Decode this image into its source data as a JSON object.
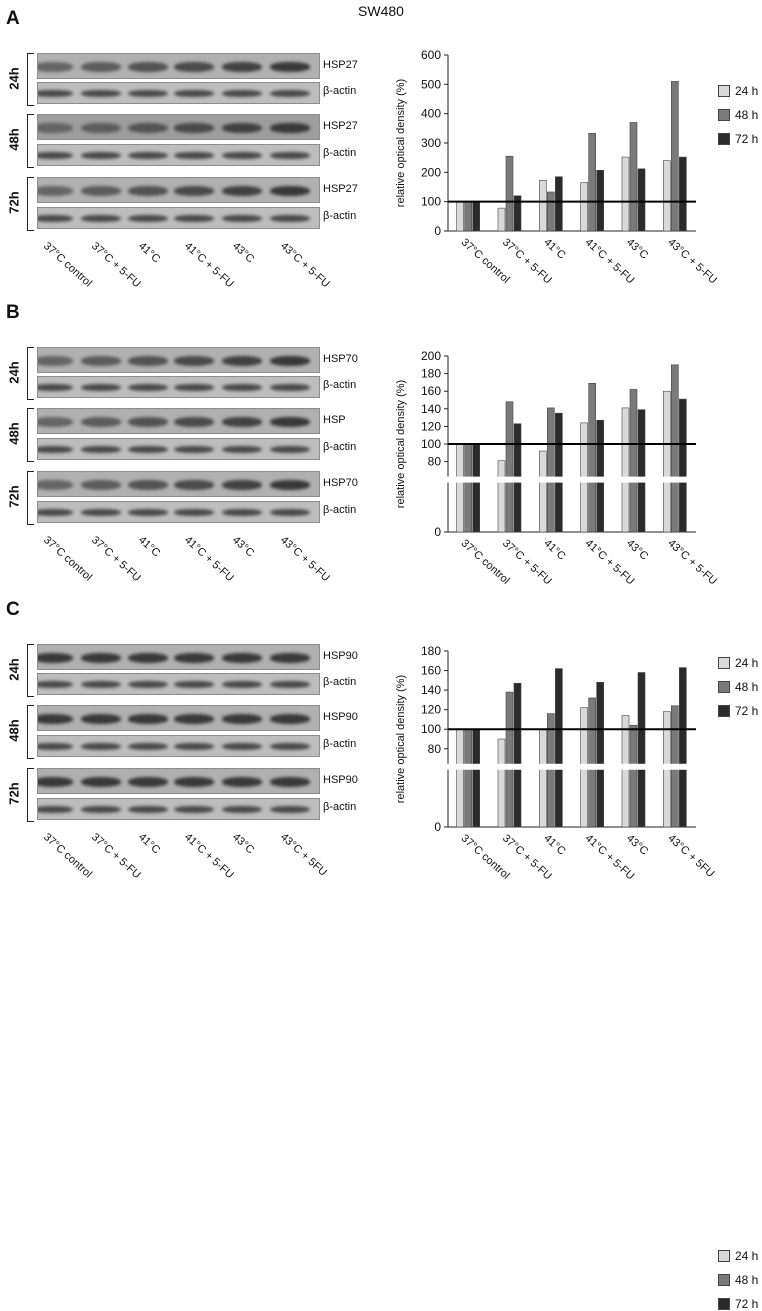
{
  "figure_title": "SW480",
  "conditions": [
    "37°C control",
    "37°C + 5-FU",
    "41°C",
    "41°C + 5-FU",
    "43°C",
    "43°C + 5-FU"
  ],
  "time_labels": [
    "24h",
    "48h",
    "72h"
  ],
  "panels": [
    {
      "label": "A",
      "blot_labels": [
        "HSP27",
        "β-actin",
        "HSP27",
        "β-actin",
        "HSP27",
        "β-actin"
      ],
      "lane_labels": [
        "37°C control",
        "37°C + 5-FU",
        "41°C",
        "41°C + 5-FU",
        "43°C",
        "43°C + 5-FU"
      ]
    },
    {
      "label": "B",
      "blot_labels": [
        "HSP70",
        "β-actin",
        "HSP",
        "β-actin",
        "HSP70",
        "β-actin"
      ],
      "lane_labels": [
        "37°C control",
        "37°C + 5-FU",
        "41°C",
        "41°C + 5-FU",
        "43°C",
        "43°C + 5-FU"
      ]
    },
    {
      "label": "C",
      "blot_labels": [
        "HSP90",
        "β-actin",
        "HSP90",
        "β-actin",
        "HSP90",
        "β-actin"
      ],
      "lane_labels": [
        "37°C control",
        "37°C + 5-FU",
        "41°C",
        "41°C + 5-FU",
        "43°C",
        "43°C + 5FU"
      ]
    }
  ],
  "chart_data": [
    {
      "type": "bar",
      "ylabel": "relative optical density (%)",
      "categories": [
        "37°C control",
        "37°C + 5-FU",
        "41°C",
        "41°C + 5-FU",
        "43°C",
        "43°C + 5-FU"
      ],
      "ylim": [
        0,
        600
      ],
      "yticks": [
        0,
        100,
        200,
        300,
        400,
        500,
        600
      ],
      "axis_break": false,
      "reference_line": 100,
      "legend_position": "right",
      "series": [
        {
          "name": "24 h",
          "color": "#d9d9d9",
          "values": [
            100,
            78,
            173,
            165,
            252,
            240
          ]
        },
        {
          "name": "48 h",
          "color": "#7a7a7a",
          "values": [
            100,
            255,
            133,
            333,
            370,
            510
          ]
        },
        {
          "name": "72 h",
          "color": "#2b2b2b",
          "values": [
            100,
            120,
            185,
            207,
            212,
            252
          ]
        }
      ]
    },
    {
      "type": "bar",
      "ylabel": "relative optical density (%)",
      "categories": [
        "37°C control",
        "37°C + 5-FU",
        "41°C",
        "41°C + 5-FU",
        "43°C",
        "43°C + 5-FU"
      ],
      "ylim": [
        0,
        200
      ],
      "yticks": [
        0,
        80,
        100,
        120,
        140,
        160,
        180,
        200
      ],
      "axis_break": true,
      "reference_line": 100,
      "legend_position": "right",
      "series": [
        {
          "name": "24 h",
          "color": "#d9d9d9",
          "values": [
            100,
            81,
            92,
            124,
            141,
            160
          ]
        },
        {
          "name": "48 h",
          "color": "#7a7a7a",
          "values": [
            100,
            148,
            141,
            169,
            162,
            190
          ]
        },
        {
          "name": "72 h",
          "color": "#2b2b2b",
          "values": [
            100,
            123,
            135,
            127,
            139,
            151
          ]
        }
      ]
    },
    {
      "type": "bar",
      "ylabel": "relative optical density (%)",
      "categories": [
        "37°C control",
        "37°C + 5-FU",
        "41°C",
        "41°C + 5-FU",
        "43°C",
        "43°C + 5FU"
      ],
      "ylim": [
        0,
        180
      ],
      "yticks": [
        0,
        80,
        100,
        120,
        140,
        160,
        180
      ],
      "axis_break": true,
      "reference_line": 100,
      "legend_position": "right",
      "series": [
        {
          "name": "24 h",
          "color": "#d9d9d9",
          "values": [
            100,
            90,
            100,
            122,
            114,
            118
          ]
        },
        {
          "name": "48 h",
          "color": "#7a7a7a",
          "values": [
            100,
            138,
            116,
            132,
            104,
            124
          ]
        },
        {
          "name": "72 h",
          "color": "#2b2b2b",
          "values": [
            100,
            147,
            162,
            148,
            158,
            163
          ]
        }
      ]
    }
  ]
}
